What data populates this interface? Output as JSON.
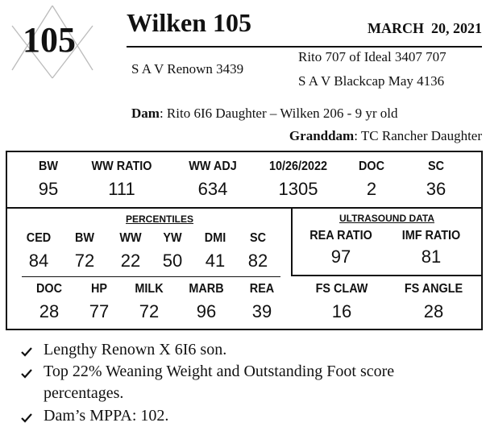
{
  "lot": {
    "number": "105"
  },
  "header": {
    "title": "Wilken 105",
    "date": "MARCH  20, 2021"
  },
  "pedigree": {
    "sire": "S A V Renown 3439",
    "sire_sire": "Rito 707 of Ideal 3407 707",
    "sire_dam": "S A V Blackcap May 4136",
    "dam_label": "Dam",
    "dam": ": Rito 6I6 Daughter – Wilken 206 - 9 yr old",
    "granddam_label": "Granddam",
    "granddam": ": TC Rancher Daughter"
  },
  "stats": {
    "labels": [
      "BW",
      "WW RATIO",
      "WW ADJ",
      "10/26/2022",
      "DOC",
      "SC"
    ],
    "values": [
      "95",
      "111",
      "634",
      "1305",
      "2",
      "36"
    ]
  },
  "percentiles": {
    "title": "PERCENTILES",
    "row1_labels": [
      "CED",
      "BW",
      "WW",
      "YW",
      "DMI",
      "SC"
    ],
    "row1_values": [
      "84",
      "72",
      "22",
      "50",
      "41",
      "82"
    ],
    "row2_labels": [
      "DOC",
      "HP",
      "MILK",
      "MARB",
      "REA"
    ],
    "row2_values": [
      "28",
      "77",
      "72",
      "96",
      "39"
    ]
  },
  "ultrasound": {
    "title": "ULTRASOUND DATA",
    "labels": [
      "REA RATIO",
      "IMF RATIO"
    ],
    "values": [
      "97",
      "81"
    ]
  },
  "foot": {
    "labels": [
      "FS CLAW",
      "FS ANGLE"
    ],
    "values": [
      "16",
      "28"
    ]
  },
  "bullets": [
    "Lengthy Renown X 6I6 son.",
    "Top 22% Weaning Weight and Outstanding Foot score",
    "percentages.",
    "Dam’s MPPA: 102."
  ],
  "icons": {
    "bullet": "check-icon"
  }
}
